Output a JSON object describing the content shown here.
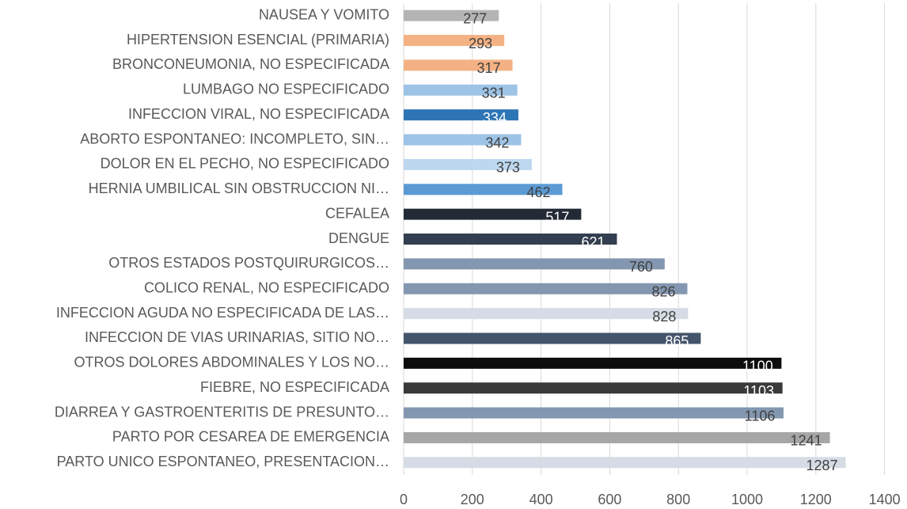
{
  "chart_data": {
    "type": "barh",
    "categories": [
      "NAUSEA Y VOMITO",
      "HIPERTENSION ESENCIAL (PRIMARIA)",
      "BRONCONEUMONIA, NO ESPECIFICADA",
      "LUMBAGO NO ESPECIFICADO",
      "INFECCION VIRAL, NO ESPECIFICADA",
      "ABORTO ESPONTANEO: INCOMPLETO, SIN…",
      "DOLOR EN EL PECHO, NO ESPECIFICADO",
      "HERNIA UMBILICAL SIN OBSTRUCCION NI…",
      "CEFALEA",
      "DENGUE",
      "OTROS ESTADOS POSTQUIRURGICOS…",
      "COLICO RENAL, NO ESPECIFICADO",
      "INFECCION AGUDA NO ESPECIFICADA DE LAS…",
      "INFECCION DE VIAS URINARIAS, SITIO NO…",
      "OTROS DOLORES ABDOMINALES Y LOS NO…",
      "FIEBRE, NO ESPECIFICADA",
      "DIARREA Y GASTROENTERITIS DE PRESUNTO…",
      "PARTO POR CESAREA DE EMERGENCIA",
      "PARTO UNICO ESPONTANEO, PRESENTACION…"
    ],
    "values": [
      277,
      293,
      317,
      331,
      334,
      342,
      373,
      462,
      517,
      621,
      760,
      826,
      828,
      865,
      1100,
      1103,
      1106,
      1241,
      1287
    ],
    "colors": [
      "#b4b4b4",
      "#f4b183",
      "#f4b183",
      "#9dc3e6",
      "#2e75b6",
      "#9dc3e6",
      "#bdd7ee",
      "#5b9bd5",
      "#222a35",
      "#333f50",
      "#8497b0",
      "#8497b0",
      "#d6dce5",
      "#44546a",
      "#0d0d0d",
      "#3a3a3a",
      "#8497b0",
      "#a6a6a6",
      "#d6dce5"
    ],
    "xlim": [
      0,
      1400
    ],
    "xticks": [
      0,
      200,
      400,
      600,
      800,
      1000,
      1200,
      1400
    ],
    "grid": true
  }
}
